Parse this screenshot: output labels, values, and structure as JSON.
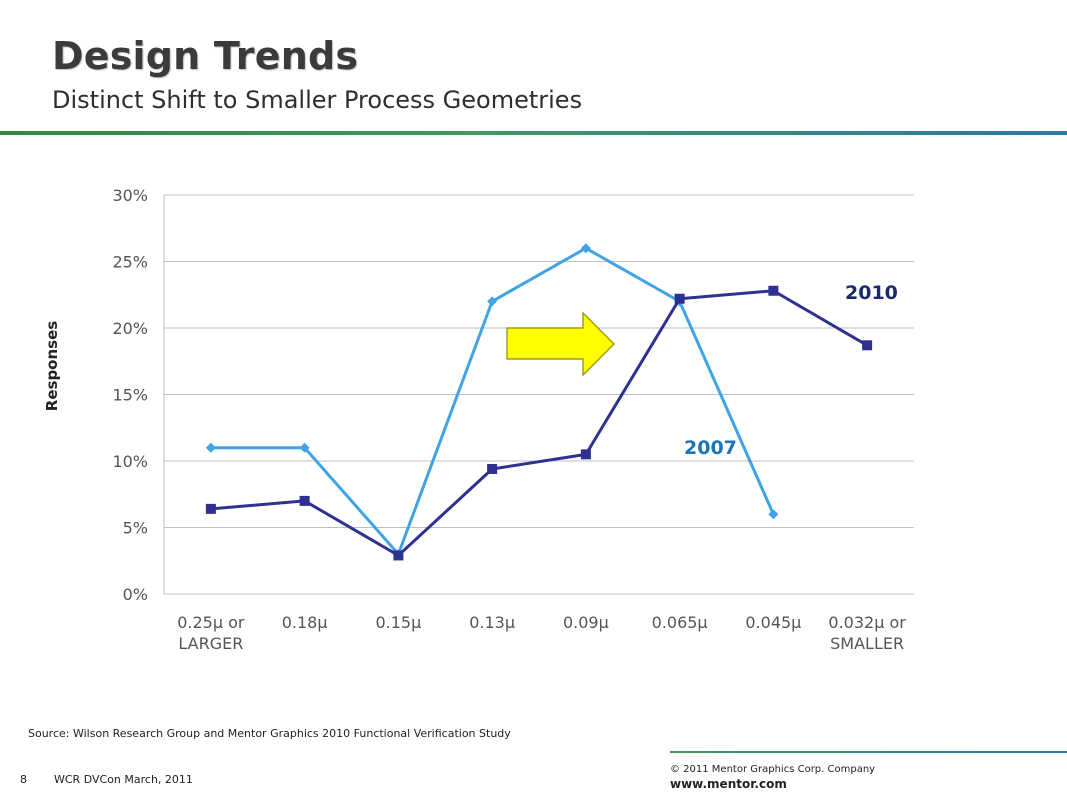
{
  "slide": {
    "title": "Design Trends",
    "subtitle": "Distinct Shift to Smaller Process Geometries",
    "source": "Source:  Wilson Research Group and Mentor Graphics 2010 Functional Verification Study",
    "page_number": "8",
    "event": "WCR DVCon March, 2011",
    "copyright": "© 2011 Mentor Graphics Corp. Company",
    "website": "www.mentor.com"
  },
  "colors": {
    "series_2007": "#3fa3e6",
    "series_2010": "#2e3192",
    "label_2007": "#1a74b8",
    "label_2010": "#1a2a6b",
    "arrow_fill": "#ffff00",
    "grid": "#bfbfbf"
  },
  "chart_data": {
    "type": "line",
    "title": "",
    "xlabel": "",
    "ylabel": "Responses",
    "ylim": [
      0,
      30
    ],
    "yticks": [
      "0%",
      "5%",
      "10%",
      "15%",
      "20%",
      "25%",
      "30%"
    ],
    "grid": true,
    "categories": [
      [
        "0.25μ or",
        "LARGER"
      ],
      [
        "0.18μ"
      ],
      [
        "0.15μ"
      ],
      [
        "0.13μ"
      ],
      [
        "0.09μ"
      ],
      [
        "0.065μ"
      ],
      [
        "0.045μ"
      ],
      [
        "0.032μ  or",
        "SMALLER"
      ]
    ],
    "series": [
      {
        "name": "2007",
        "marker": "diamond",
        "values": [
          11,
          11,
          3,
          22,
          26,
          22,
          6,
          null
        ]
      },
      {
        "name": "2010",
        "marker": "square",
        "values": [
          6.4,
          7,
          2.9,
          9.4,
          10.5,
          22.2,
          22.8,
          18.7
        ]
      }
    ],
    "annotations": [
      {
        "text": "2010",
        "series": "2010"
      },
      {
        "text": "2007",
        "series": "2007"
      },
      {
        "shape": "arrow-right",
        "meaning": "shift-to-smaller-geometries"
      }
    ]
  }
}
